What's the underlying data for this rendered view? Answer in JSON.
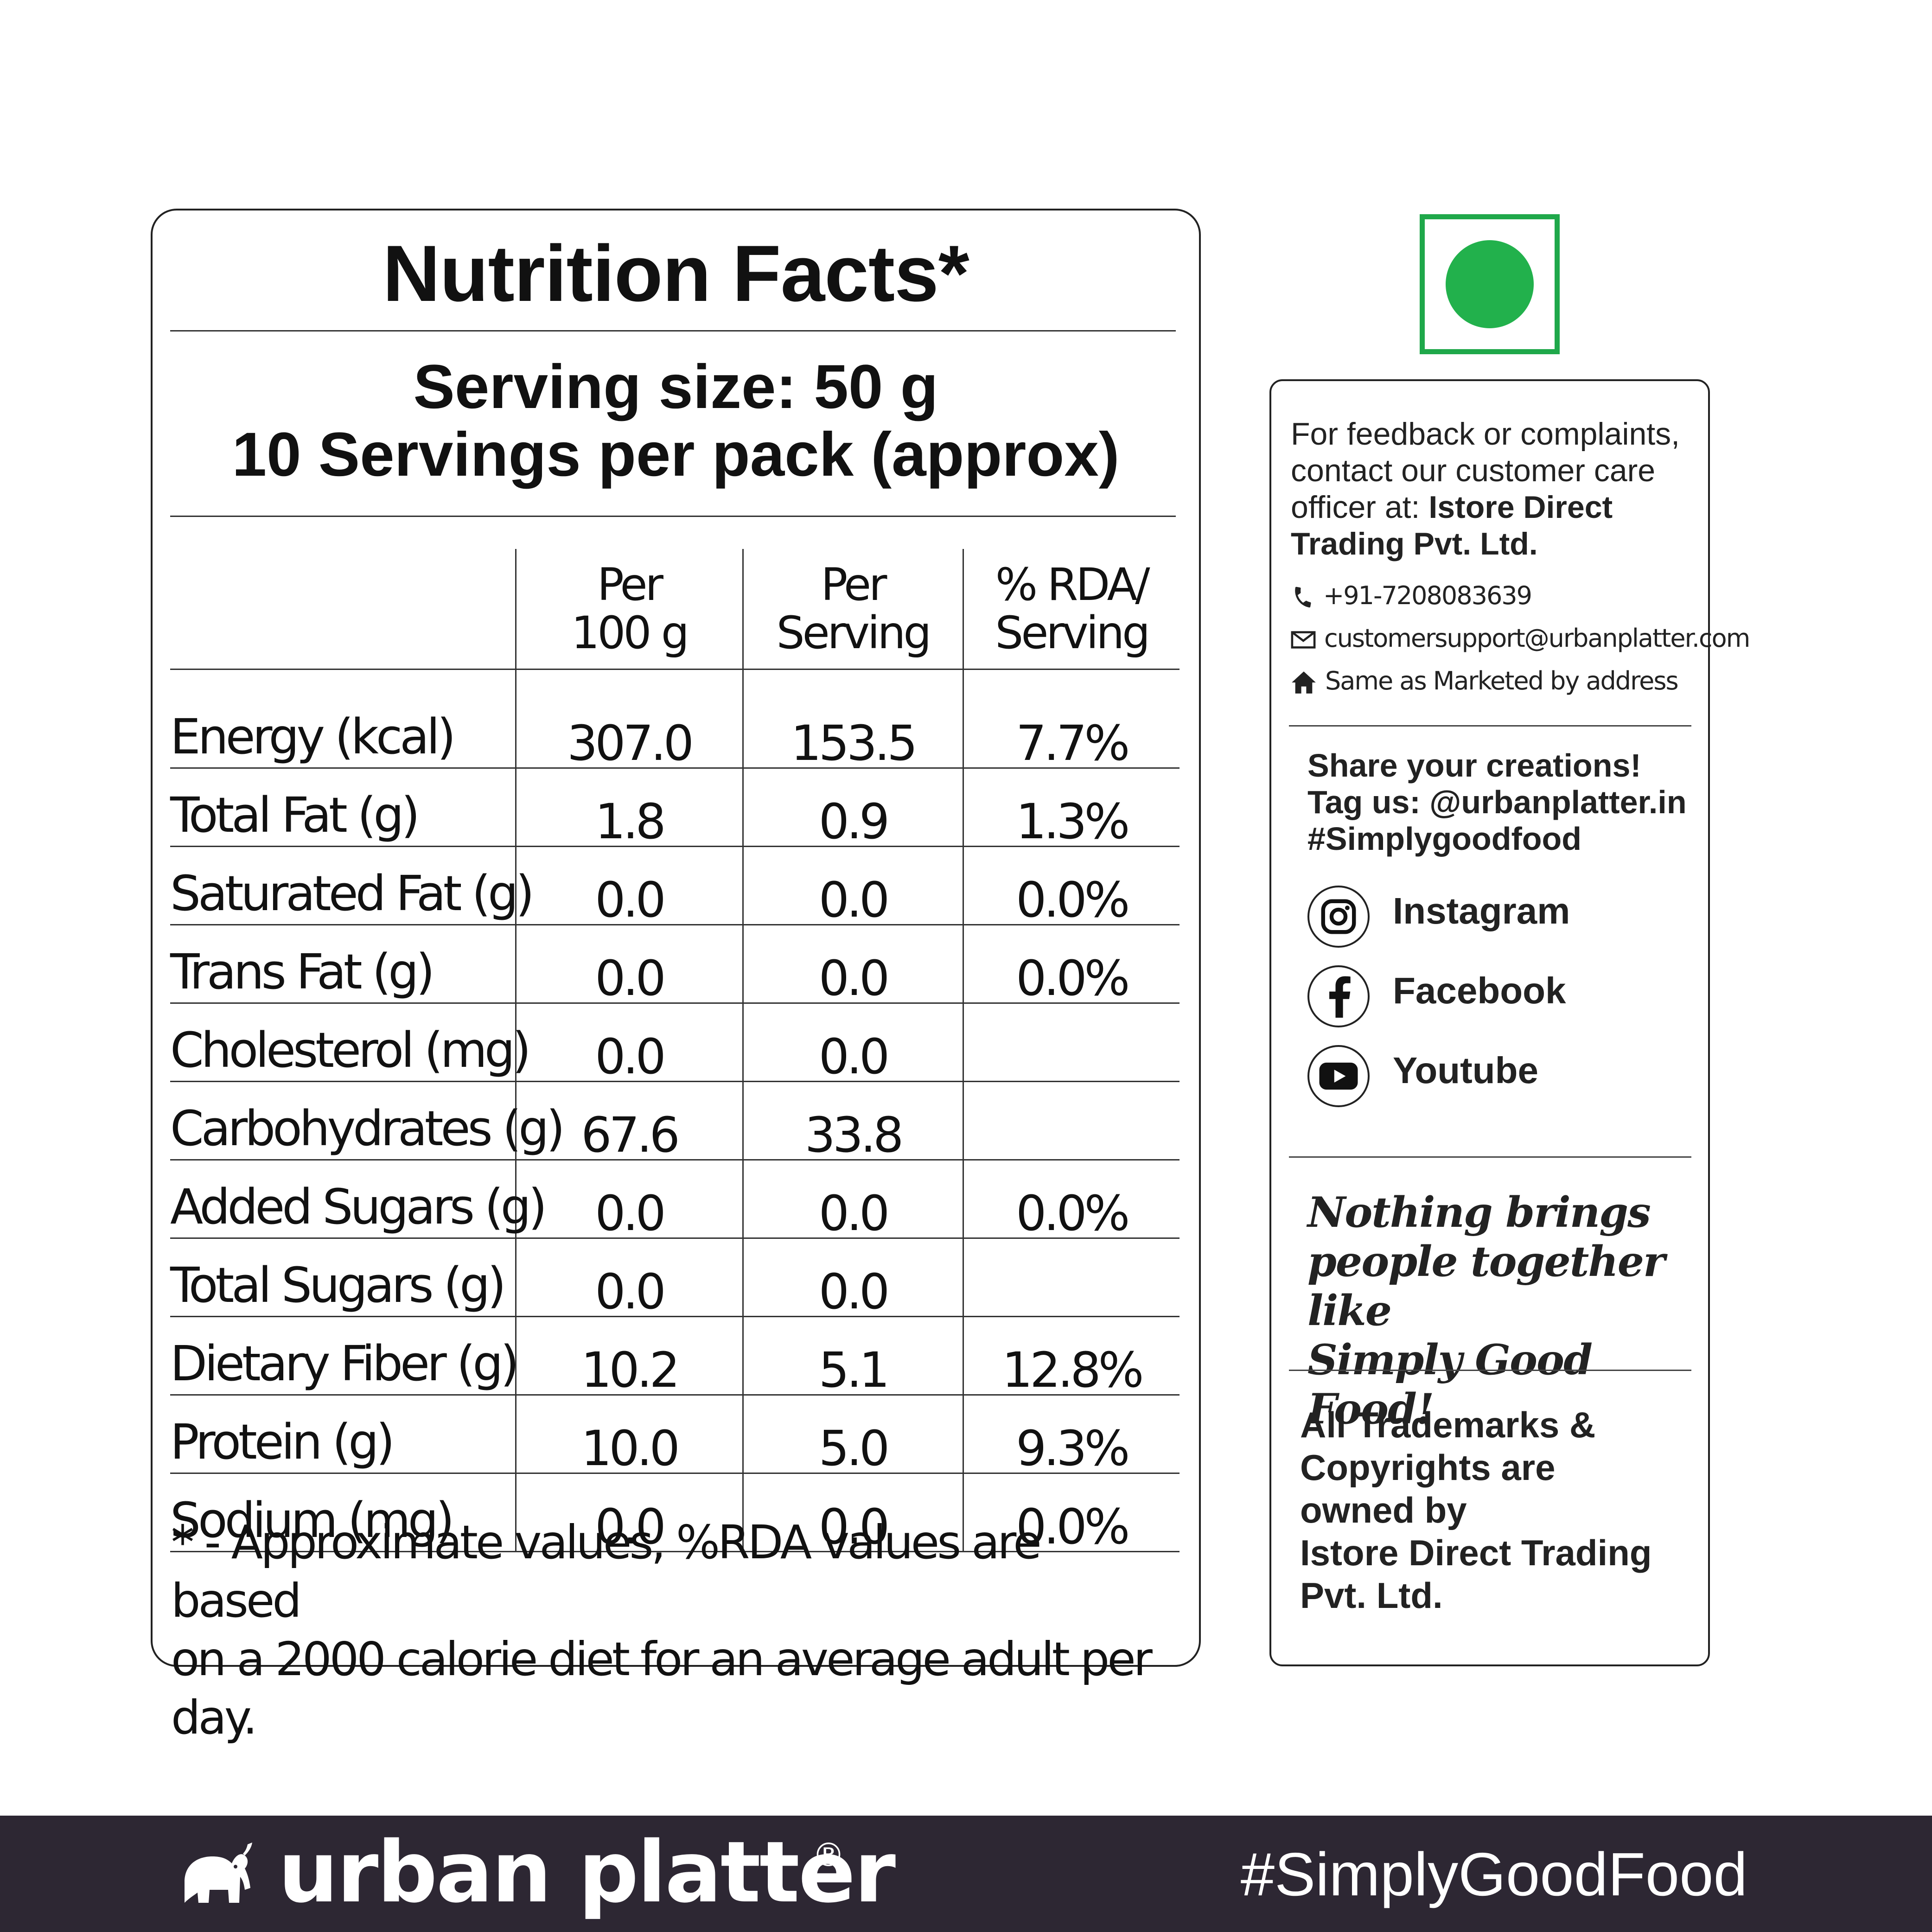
{
  "nutrition": {
    "title": "Nutrition Facts*",
    "serving_size": "Serving size: 50 g",
    "servings_per_pack": "10 Servings per pack (approx)",
    "headers": {
      "per_100g": [
        "Per",
        "100 g"
      ],
      "per_serving": [
        "Per",
        "Serving"
      ],
      "rda": [
        "% RDA/",
        "Serving"
      ]
    },
    "rows": [
      {
        "name": "Energy (kcal)",
        "per_100g": "307.0",
        "per_serving": "153.5",
        "rda": "7.7%"
      },
      {
        "name": "Total Fat (g)",
        "per_100g": "1.8",
        "per_serving": "0.9",
        "rda": "1.3%"
      },
      {
        "name": "Saturated Fat (g)",
        "per_100g": "0.0",
        "per_serving": "0.0",
        "rda": "0.0%"
      },
      {
        "name": "Trans Fat (g)",
        "per_100g": "0.0",
        "per_serving": "0.0",
        "rda": "0.0%"
      },
      {
        "name": "Cholesterol (mg)",
        "per_100g": "0.0",
        "per_serving": "0.0",
        "rda": ""
      },
      {
        "name": "Carbohydrates (g)",
        "per_100g": "67.6",
        "per_serving": "33.8",
        "rda": ""
      },
      {
        "name": "Added Sugars (g)",
        "per_100g": "0.0",
        "per_serving": "0.0",
        "rda": "0.0%"
      },
      {
        "name": "Total Sugars (g)",
        "per_100g": "0.0",
        "per_serving": "0.0",
        "rda": ""
      },
      {
        "name": "Dietary Fiber (g)",
        "per_100g": "10.2",
        "per_serving": "5.1",
        "rda": "12.8%"
      },
      {
        "name": "Protein (g)",
        "per_100g": "10.0",
        "per_serving": "5.0",
        "rda": "9.3%"
      },
      {
        "name": "Sodium (mg)",
        "per_100g": "0.0",
        "per_serving": "0.0",
        "rda": "0.0%"
      }
    ],
    "footnote_line1": "* - Approximate values, %RDA values are based",
    "footnote_line2": "on a 2000 calorie diet for an average adult per day."
  },
  "veg_mark": {
    "color": "#22b14c"
  },
  "info": {
    "feedback_text": "For feedback or complaints, contact our customer care officer at: ",
    "feedback_company": "Istore Direct Trading Pvt. Ltd.",
    "phone": "+91-7208083639",
    "email": "customersupport@urbanplatter.com",
    "address": "Same as Marketed by address",
    "icons": {
      "phone": "phone-icon",
      "email": "envelope-icon",
      "address": "home-icon"
    },
    "share_line1": "Share your creations!",
    "share_line2": "Tag us: @urbanplatter.in",
    "share_line3": "#Simplygoodfood",
    "social": [
      {
        "label": "Instagram",
        "icon": "instagram-icon"
      },
      {
        "label": "Facebook",
        "icon": "facebook-icon"
      },
      {
        "label": "Youtube",
        "icon": "youtube-icon"
      }
    ],
    "tagline_line1": "Nothing brings",
    "tagline_line2": "people together like",
    "tagline_line3": "Simply Good Food!",
    "trademark_line1": "All Trademarks &",
    "trademark_line2": "Copyrights are",
    "trademark_line3": "owned by",
    "trademark_line4": "Istore Direct Trading",
    "trademark_line5": "Pvt. Ltd."
  },
  "footer": {
    "brand": "urban platter",
    "registered": "®",
    "hashtag": "#SimplyGoodFood",
    "background": "#2d2733",
    "logo_icon": "elephant-icon"
  }
}
